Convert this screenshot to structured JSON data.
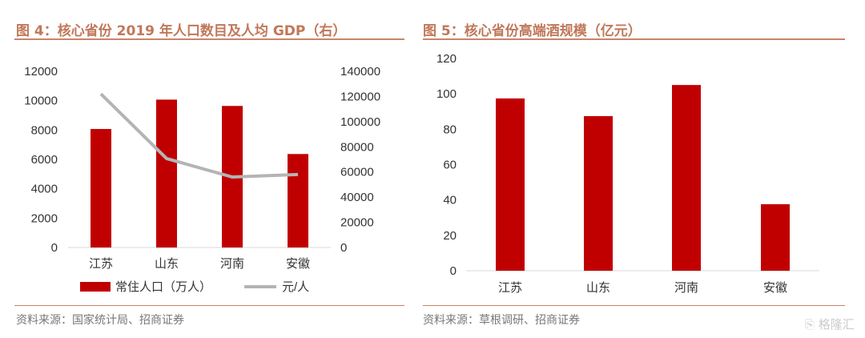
{
  "colors": {
    "bar": "#c00000",
    "line": "#b4b4b4",
    "title": "#c0785a"
  },
  "watermark": "格隆汇",
  "chart_data": [
    {
      "type": "bar+line",
      "title": "图 4：核心省份 2019 年人口数目及人均 GDP（右）",
      "categories": [
        "江苏",
        "山东",
        "河南",
        "安徽"
      ],
      "series": [
        {
          "name": "常住人口（万人）",
          "type": "bar",
          "axis": "left",
          "values": [
            8070,
            10070,
            9640,
            6366
          ]
        },
        {
          "name": "元/人",
          "type": "line",
          "axis": "right",
          "values": [
            122000,
            70650,
            56000,
            58000
          ]
        }
      ],
      "ylim": [
        0,
        12000
      ],
      "yticks": [
        0,
        2000,
        4000,
        6000,
        8000,
        10000,
        12000
      ],
      "y2lim": [
        0,
        140000
      ],
      "y2ticks": [
        0,
        20000,
        40000,
        60000,
        80000,
        100000,
        120000,
        140000
      ],
      "legend": "bottom",
      "grid": false,
      "source": "资料来源：国家统计局、招商证券"
    },
    {
      "type": "bar",
      "title": "图 5：核心省份高端酒规模（亿元）",
      "categories": [
        "江苏",
        "山东",
        "河南",
        "安徽"
      ],
      "values": [
        97.4,
        87.4,
        105,
        37.6
      ],
      "ylim": [
        0,
        120
      ],
      "yticks": [
        0,
        20,
        40,
        60,
        80,
        100,
        120
      ],
      "grid": false,
      "source": "资料来源：草根调研、招商证券"
    }
  ]
}
